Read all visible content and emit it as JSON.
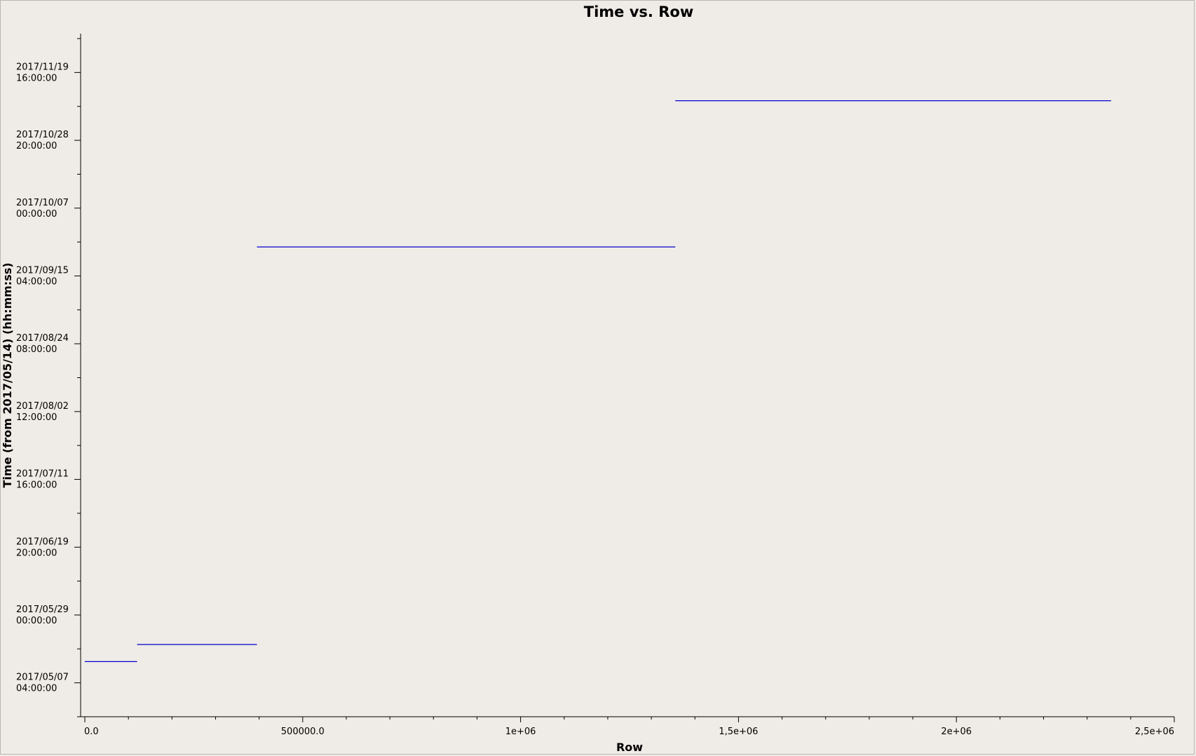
{
  "chart_data": {
    "type": "line",
    "title": "Time vs. Row",
    "xlabel": "Row",
    "ylabel": "Time (from 2017/05/14) (hh:mm:ss)",
    "xlim": [
      0,
      2500000
    ],
    "ylim": [
      "2017/04/26 06:00:00",
      "2017/12/02 04:00:00"
    ],
    "x_ticks": [
      {
        "value": 0,
        "label": "0.0"
      },
      {
        "value": 500000,
        "label": "500000.0"
      },
      {
        "value": 1000000,
        "label": "1e+06"
      },
      {
        "value": 1500000,
        "label": "1,5e+06"
      },
      {
        "value": 2000000,
        "label": "2e+06"
      },
      {
        "value": 2500000,
        "label": "2,5e+06"
      }
    ],
    "y_ticks": [
      {
        "value": "2017/05/07 04:00:00",
        "date": "2017/05/07",
        "time": "04:00:00"
      },
      {
        "value": "2017/05/29 00:00:00",
        "date": "2017/05/29",
        "time": "00:00:00"
      },
      {
        "value": "2017/06/19 20:00:00",
        "date": "2017/06/19",
        "time": "20:00:00"
      },
      {
        "value": "2017/07/11 16:00:00",
        "date": "2017/07/11",
        "time": "16:00:00"
      },
      {
        "value": "2017/08/02 12:00:00",
        "date": "2017/08/02",
        "time": "12:00:00"
      },
      {
        "value": "2017/08/24 08:00:00",
        "date": "2017/08/24",
        "time": "08:00:00"
      },
      {
        "value": "2017/09/15 04:00:00",
        "date": "2017/09/15",
        "time": "04:00:00"
      },
      {
        "value": "2017/10/07 00:00:00",
        "date": "2017/10/07",
        "time": "00:00:00"
      },
      {
        "value": "2017/10/28 20:00:00",
        "date": "2017/10/28",
        "time": "20:00:00"
      },
      {
        "value": "2017/11/19 16:00:00",
        "date": "2017/11/19",
        "time": "16:00:00"
      }
    ],
    "grid": false,
    "series": [
      {
        "color": "#0000cc",
        "segments": [
          {
            "x": [
              0,
              120000
            ],
            "y": "2017/05/14 00:00:00"
          },
          {
            "x": [
              120000,
              395000
            ],
            "y": "2017/05/19 12:00:00"
          },
          {
            "x": [
              395000,
              1355000
            ],
            "y": "2017/09/24 12:00:00"
          },
          {
            "x": [
              1355000,
              2355000
            ],
            "y": "2017/11/10 14:00:00"
          }
        ]
      }
    ]
  }
}
